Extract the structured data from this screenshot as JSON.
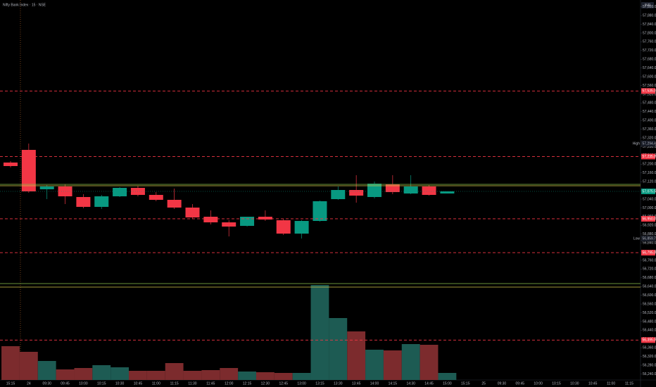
{
  "chart_data": {
    "type": "candlestick",
    "title": "Nifty Bank Index · 15 · NSE",
    "currency": "INR",
    "categories": [
      "15:15",
      "24",
      "09:30",
      "09:45",
      "10:00",
      "10:15",
      "10:30",
      "10:45",
      "11:00",
      "11:15",
      "11:30",
      "11:45",
      "12:00",
      "12:15",
      "12:30",
      "12:45",
      "13:00",
      "13:15",
      "13:30",
      "13:45",
      "14:00",
      "14:15",
      "14:30",
      "14:45",
      "15:00",
      "15:15",
      "25",
      "09:30",
      "09:45",
      "10:00",
      "10:15",
      "10:30",
      "10:45",
      "11:00",
      "11:15"
    ],
    "open": [
      57207.5,
      57265.4,
      57085.1,
      57098.0,
      57049.7,
      57004.6,
      57052.9,
      57091.6,
      57059.4,
      57036.8,
      57001.4,
      56959.5,
      56933.8,
      56917.7,
      56959.5,
      56943.4,
      56882.3,
      56940.2,
      57040.0,
      57081.9,
      57049.7,
      57107.7,
      57065.8,
      57098.0,
      57065.8,
      null,
      null,
      null,
      null,
      null,
      null,
      null,
      null,
      null,
      null
    ],
    "high": [
      57213.9,
      57294.45,
      57104.4,
      57107.7,
      57062.6,
      57059.4,
      57094.8,
      57101.2,
      57072.2,
      57088.3,
      57017.5,
      56988.5,
      56943.4,
      56959.5,
      56988.5,
      56949.9,
      56943.4,
      57033.6,
      57098.0,
      57149.5,
      57120.5,
      57149.5,
      57149.5,
      57104.4,
      57075.5,
      null,
      null,
      null,
      null,
      null,
      null,
      null,
      null,
      null,
      null
    ],
    "low": [
      57184.9,
      57069.0,
      57040.0,
      57017.5,
      56998.2,
      56995.0,
      57049.7,
      57052.9,
      57030.4,
      56995.0,
      56949.9,
      56924.1,
      56869.4,
      56914.5,
      56940.2,
      56875.8,
      56859.7,
      56937.0,
      57036.8,
      57023.9,
      57043.3,
      57062.6,
      57062.6,
      57056.1,
      57065.8,
      null,
      null,
      null,
      null,
      null,
      null,
      null,
      null,
      null,
      null
    ],
    "close": [
      57191.4,
      57075.5,
      57098.0,
      57052.9,
      57004.6,
      57052.9,
      57091.6,
      57059.4,
      57036.8,
      57001.4,
      56956.3,
      56933.8,
      56914.5,
      56959.5,
      56946.7,
      56882.3,
      56940.2,
      57030.4,
      57081.9,
      57056.1,
      57110.9,
      57072.2,
      57098.0,
      57059.4,
      57075.5,
      null,
      null,
      null,
      null,
      null,
      null,
      null,
      null,
      null,
      null
    ],
    "volume": [
      48,
      40,
      27,
      15,
      17,
      21,
      18,
      13,
      13,
      24,
      13,
      14,
      17,
      12,
      11,
      10,
      10,
      135,
      88,
      69,
      43,
      42,
      51,
      50,
      10,
      null,
      null,
      null,
      null,
      null,
      null,
      null,
      null,
      null,
      null
    ],
    "volume_lim": [
      0,
      140
    ],
    "up_color": "#089981",
    "down_color": "#f23645",
    "volume_up_color": "#1d5b53",
    "volume_down_color": "#7c2b2d",
    "ylim": [
      56212.5,
      57951.3
    ],
    "yticks": [
      {
        "value": 57920,
        "label": "57,920.00"
      },
      {
        "value": 57880,
        "label": "57,880.00"
      },
      {
        "value": 57840,
        "label": "57,840.00"
      },
      {
        "value": 57800,
        "label": "57,800.00"
      },
      {
        "value": 57760,
        "label": "57,760.00"
      },
      {
        "value": 57720,
        "label": "57,720.00"
      },
      {
        "value": 57680,
        "label": "57,680.00"
      },
      {
        "value": 57640,
        "label": "57,640.00"
      },
      {
        "value": 57600,
        "label": "57,600.00"
      },
      {
        "value": 57560,
        "label": "57,560.00"
      },
      {
        "value": 57520,
        "label": "57,520.00"
      },
      {
        "value": 57480,
        "label": "57,480.00"
      },
      {
        "value": 57440,
        "label": "57,440.00"
      },
      {
        "value": 57400,
        "label": "57,400.00"
      },
      {
        "value": 57360,
        "label": "57,360.00"
      },
      {
        "value": 57320,
        "label": "57,320.00"
      },
      {
        "value": 57280,
        "label": "57,280.00"
      },
      {
        "value": 57240,
        "label": "57,240.00"
      },
      {
        "value": 57200,
        "label": "57,200.00"
      },
      {
        "value": 57160,
        "label": "57,160.00"
      },
      {
        "value": 57120,
        "label": "57,120.00"
      },
      {
        "value": 57080,
        "label": "57,080.00"
      },
      {
        "value": 57040,
        "label": "57,040.00"
      },
      {
        "value": 57000,
        "label": "57,000.00"
      },
      {
        "value": 56960,
        "label": "56,960.00"
      },
      {
        "value": 56920,
        "label": "56,920.00"
      },
      {
        "value": 56880,
        "label": "56,880.00"
      },
      {
        "value": 56840,
        "label": "56,840.00"
      },
      {
        "value": 56800,
        "label": "56,800.00"
      },
      {
        "value": 56760,
        "label": "56,760.00"
      },
      {
        "value": 56720,
        "label": "56,720.00"
      },
      {
        "value": 56680,
        "label": "56,680.00"
      },
      {
        "value": 56640,
        "label": "56,640.00"
      },
      {
        "value": 56600,
        "label": "56,600.00"
      },
      {
        "value": 56560,
        "label": "56,560.00"
      },
      {
        "value": 56520,
        "label": "56,520.00"
      },
      {
        "value": 56480,
        "label": "56,480.00"
      },
      {
        "value": 56440,
        "label": "56,440.00"
      },
      {
        "value": 56400,
        "label": "56,400.00"
      },
      {
        "value": 56360,
        "label": "56,360.00"
      },
      {
        "value": 56320,
        "label": "56,320.00"
      },
      {
        "value": 56280,
        "label": "56,280.00"
      },
      {
        "value": 56240,
        "label": "56,240.00"
      }
    ],
    "levels": [
      {
        "value": 57535,
        "label": "57,535.00",
        "color": "#f23645"
      },
      {
        "value": 57235,
        "label": "57,235.00",
        "color": "#f23645"
      },
      {
        "value": 56950,
        "label": "56,950.00",
        "color": "#f23645"
      },
      {
        "value": 56795,
        "label": "56,795.00",
        "color": "#f23645"
      },
      {
        "value": 56395,
        "label": "56,395.00",
        "color": "#f23645"
      },
      {
        "value": 57107.7,
        "color": "#8bc34a"
      },
      {
        "value": 57101.2,
        "color": "#d4c94a"
      },
      {
        "value": 56653.7,
        "color": "#8bc34a"
      },
      {
        "value": 56637.5,
        "color": "#d4c94a"
      }
    ],
    "high_marker": {
      "label": "High",
      "value": 57294.45,
      "value_label": "57,294.45"
    },
    "low_marker": {
      "label": "Low",
      "value": 56859.7,
      "value_label": "56,859.70"
    },
    "last_price": {
      "value": 57075.5,
      "label": "57,075.50"
    }
  }
}
